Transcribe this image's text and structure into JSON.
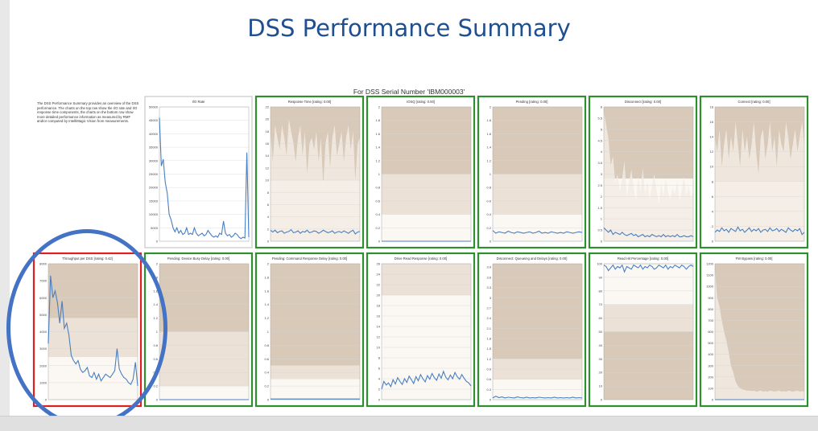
{
  "page": {
    "title": "DSS Performance Summary",
    "subtitle": "For DSS Serial Number 'IBM000003'",
    "description": "The DSS Performance Summary provides an overview of the DSS performance. The charts on the top row show the I/O rate and I/O response time components, the charts on the bottom row show more detailed performance information as measured by RMF and/or computed by IntelliMagic Vision from measurements."
  },
  "colors": {
    "title": "#1f4f8f",
    "line": "#4a7fc1",
    "band_dark": "#d8c9b8",
    "band_mid": "#ebe1d6",
    "band_light": "#fbf8f3",
    "frame_green": "#2f8f2f",
    "frame_red": "#e02020",
    "frame_gray": "#c8c8c8",
    "annotation_circle": "#4472c4"
  },
  "chart_data": [
    {
      "type": "line",
      "title": "I/O Rate",
      "frame": "gray",
      "bands": [],
      "yticks": [
        "0",
        "5000",
        "10000",
        "15000",
        "20000",
        "25000",
        "30000",
        "35000",
        "40000",
        "45000",
        "50000"
      ],
      "ylim": [
        0,
        50000
      ],
      "series": [
        {
          "values": [
            46000,
            28000,
            30500,
            22000,
            18000,
            10000,
            8000,
            5000,
            3500,
            5000,
            3000,
            4000,
            2500,
            3000,
            5000,
            2500,
            3000,
            2500,
            5000,
            3000,
            2000,
            2500,
            3000,
            2000,
            2500,
            4000,
            3000,
            2000,
            1500,
            2000,
            1500,
            3000,
            2500,
            7500,
            3000,
            2000,
            2500,
            1500,
            2000,
            3000,
            2500,
            1500,
            1000,
            1500,
            1200,
            33000,
            1500
          ]
        }
      ]
    },
    {
      "type": "line",
      "title": "Response Time [rating: 0.00]",
      "frame": "green",
      "bands": [
        [
          10,
          22,
          "band_dark"
        ],
        [
          0,
          10,
          "band_light"
        ]
      ],
      "envelope": [
        18,
        13,
        19,
        17,
        15,
        19,
        17,
        14,
        20,
        18,
        16,
        13,
        17,
        19,
        14,
        18,
        11,
        16,
        17,
        15,
        18,
        13,
        17,
        9,
        16,
        18,
        12,
        17,
        19,
        14,
        16,
        18,
        13,
        17,
        19,
        15,
        18,
        10,
        16,
        17
      ],
      "yticks": [
        "0",
        "2",
        "4",
        "6",
        "8",
        "10",
        "12",
        "14",
        "16",
        "18",
        "20",
        "22"
      ],
      "ylim": [
        0,
        22
      ],
      "series": [
        {
          "values": [
            1.8,
            1.5,
            1.8,
            1.4,
            1.6,
            1.7,
            1.3,
            1.5,
            1.6,
            1.9,
            1.4,
            1.5,
            1.7,
            1.3,
            1.6,
            1.5,
            1.8,
            1.4,
            1.5,
            1.7,
            1.6,
            1.3,
            1.5,
            1.8,
            1.6,
            1.4,
            1.5,
            1.7,
            1.3,
            1.5,
            1.6,
            1.4,
            1.7,
            1.5,
            1.3,
            1.6,
            1.8,
            1.2,
            1.5,
            1.6
          ]
        }
      ]
    },
    {
      "type": "line",
      "title": "IOSQ [rating: 0.00]",
      "frame": "green",
      "bands": [
        [
          1,
          2,
          "band_dark"
        ],
        [
          0.4,
          1,
          "band_mid"
        ],
        [
          0,
          0.4,
          "band_light"
        ]
      ],
      "yticks": [
        "0",
        "0.2",
        "0.4",
        "0.6",
        "0.8",
        "1",
        "1.2",
        "1.4",
        "1.6",
        "1.8",
        "2"
      ],
      "ylim": [
        0,
        2
      ],
      "series": [
        {
          "values": [
            0,
            0,
            0,
            0,
            0,
            0,
            0,
            0,
            0,
            0,
            0,
            0,
            0,
            0,
            0,
            0,
            0,
            0,
            0,
            0,
            0,
            0,
            0,
            0,
            0,
            0,
            0,
            0,
            0,
            0
          ]
        }
      ]
    },
    {
      "type": "line",
      "title": "Pending [rating: 0.00]",
      "frame": "green",
      "bands": [
        [
          1,
          2,
          "band_dark"
        ],
        [
          0.4,
          1,
          "band_mid"
        ],
        [
          0,
          0.4,
          "band_light"
        ]
      ],
      "yticks": [
        "0",
        "0.2",
        "0.4",
        "0.6",
        "0.8",
        "1",
        "1.2",
        "1.4",
        "1.6",
        "1.8",
        "2"
      ],
      "ylim": [
        0,
        2
      ],
      "series": [
        {
          "values": [
            0.16,
            0.12,
            0.14,
            0.13,
            0.12,
            0.15,
            0.13,
            0.12,
            0.14,
            0.13,
            0.12,
            0.13,
            0.14,
            0.12,
            0.13,
            0.15,
            0.12,
            0.13,
            0.12,
            0.14,
            0.13,
            0.12,
            0.13,
            0.12,
            0.14,
            0.13,
            0.12,
            0.13,
            0.14,
            0.13
          ]
        }
      ]
    },
    {
      "type": "line",
      "title": "Disconnect [rating: 0.00]",
      "frame": "green",
      "bands": [
        [
          2.8,
          6,
          "band_dark"
        ],
        [
          0,
          2.8,
          "band_light"
        ]
      ],
      "envelope": [
        5.8,
        5.2,
        4.6,
        3.4,
        3.8,
        2.6,
        3.0,
        2.2,
        2.8,
        3.6,
        2.0,
        2.6,
        3.2,
        2.4,
        1.8,
        2.9,
        2.2,
        3.3,
        2.1,
        2.7,
        1.9,
        2.5,
        3.0,
        2.3,
        1.7,
        2.6,
        2.0,
        2.8,
        2.2,
        1.9,
        2.4,
        2.1,
        2.7,
        1.8,
        2.3,
        2.9,
        2.0,
        2.5,
        1.9,
        2.2
      ],
      "yticks": [
        "0",
        "0.5",
        "1",
        "1.5",
        "2",
        "2.5",
        "3",
        "3.5",
        "4",
        "4.5",
        "5",
        "5.5",
        "6"
      ],
      "ylim": [
        0,
        6
      ],
      "series": [
        {
          "values": [
            0.6,
            0.5,
            0.4,
            0.5,
            0.3,
            0.4,
            0.35,
            0.3,
            0.4,
            0.3,
            0.25,
            0.3,
            0.35,
            0.25,
            0.3,
            0.2,
            0.25,
            0.3,
            0.2,
            0.25,
            0.2,
            0.3,
            0.25,
            0.2,
            0.25,
            0.2,
            0.3,
            0.2,
            0.25,
            0.2,
            0.25,
            0.2,
            0.3,
            0.2,
            0.2,
            0.25,
            0.2,
            0.2,
            0.25,
            0.2
          ]
        }
      ]
    },
    {
      "type": "line",
      "title": "Connect [rating: 0.00]",
      "frame": "green",
      "bands": [
        [
          8,
          18,
          "band_dark"
        ],
        [
          0,
          8,
          "band_light"
        ]
      ],
      "envelope": [
        14,
        12,
        15,
        10,
        13,
        15,
        11,
        14,
        12,
        16,
        13,
        10,
        15,
        12,
        14,
        11,
        13,
        16,
        12,
        9,
        14,
        15,
        11,
        13,
        16,
        12,
        14,
        10,
        15,
        13,
        12,
        16,
        14,
        11,
        13,
        15,
        12,
        14,
        16,
        13
      ],
      "yticks": [
        "0",
        "2",
        "4",
        "6",
        "8",
        "10",
        "12",
        "14",
        "16",
        "18"
      ],
      "ylim": [
        0,
        18
      ],
      "series": [
        {
          "values": [
            1.2,
            1.5,
            1.3,
            1.8,
            1.4,
            1.6,
            1.2,
            1.7,
            1.5,
            1.3,
            1.9,
            1.4,
            1.6,
            1.2,
            1.5,
            1.8,
            1.3,
            1.6,
            1.4,
            1.7,
            1.2,
            1.5,
            1.6,
            1.3,
            1.8,
            1.4,
            1.5,
            1.7,
            1.3,
            1.6,
            1.4,
            1.2,
            1.8,
            1.5,
            1.3,
            1.6,
            1.4,
            1.7,
            0.9,
            1.2
          ]
        }
      ]
    },
    {
      "type": "line",
      "title": "Throughput per DSS [rating: 0.42]",
      "frame": "red",
      "bands": [
        [
          4800,
          8000,
          "band_dark"
        ],
        [
          2500,
          4800,
          "band_mid"
        ],
        [
          0,
          2500,
          "band_light"
        ]
      ],
      "yticks": [
        "0",
        "1000",
        "2000",
        "3000",
        "4000",
        "5000",
        "6000",
        "7000",
        "8000"
      ],
      "ylim": [
        0,
        8000
      ],
      "series": [
        {
          "values": [
            3300,
            7300,
            6000,
            6400,
            5700,
            4500,
            5800,
            4200,
            4500,
            3800,
            2600,
            2300,
            2100,
            2300,
            1800,
            1600,
            1700,
            1900,
            1400,
            1300,
            1600,
            1200,
            1500,
            1100,
            1300,
            1500,
            1400,
            1300,
            1500,
            1700,
            3000,
            1800,
            1500,
            1300,
            1200,
            1000,
            900,
            1200,
            2200,
            800
          ]
        }
      ]
    },
    {
      "type": "line",
      "title": "Pending: Device Busy Delay [rating: 0.00]",
      "frame": "green",
      "bands": [
        [
          1,
          2,
          "band_dark"
        ],
        [
          0.2,
          1,
          "band_mid"
        ],
        [
          0,
          0.2,
          "band_light"
        ]
      ],
      "yticks": [
        "0",
        "0.2",
        "0.4",
        "0.6",
        "0.8",
        "1",
        "1.2",
        "1.4",
        "1.6",
        "1.8",
        "2"
      ],
      "ylim": [
        0,
        2
      ],
      "series": [
        {
          "values": [
            0,
            0,
            0,
            0,
            0,
            0,
            0,
            0,
            0,
            0,
            0,
            0,
            0,
            0,
            0,
            0,
            0,
            0,
            0,
            0,
            0,
            0,
            0,
            0,
            0,
            0,
            0,
            0,
            0,
            0
          ]
        }
      ]
    },
    {
      "type": "line",
      "title": "Pending: Command Response Delay [rating: 0.00]",
      "frame": "green",
      "bands": [
        [
          0.5,
          2,
          "band_dark"
        ],
        [
          0.3,
          0.5,
          "band_mid"
        ],
        [
          0,
          0.3,
          "band_light"
        ]
      ],
      "yticks": [
        "0",
        "0.2",
        "0.4",
        "0.6",
        "0.8",
        "1",
        "1.2",
        "1.4",
        "1.6",
        "1.8",
        "2"
      ],
      "ylim": [
        0,
        2
      ],
      "series": [
        {
          "values": [
            0.01,
            0.01,
            0.01,
            0.01,
            0.01,
            0.01,
            0.01,
            0.01,
            0.01,
            0.01,
            0.01,
            0.01,
            0.01,
            0.01,
            0.01,
            0.01,
            0.01,
            0.01,
            0.01,
            0.01,
            0.01,
            0.01,
            0.01,
            0.01,
            0.01,
            0.01,
            0.01,
            0.01,
            0.01,
            0.01
          ]
        }
      ]
    },
    {
      "type": "line",
      "title": "Drive Read Response [rating: 0.00]",
      "frame": "green",
      "bands": [
        [
          20,
          26,
          "band_mid"
        ],
        [
          0,
          20,
          "band_light"
        ]
      ],
      "yticks": [
        "0",
        "2",
        "4",
        "6",
        "8",
        "10",
        "12",
        "14",
        "16",
        "18",
        "20",
        "22",
        "24",
        "26"
      ],
      "ylim": [
        0,
        26
      ],
      "series": [
        {
          "values": [
            2.0,
            3.5,
            2.8,
            3.2,
            2.5,
            3.8,
            3.0,
            4.2,
            3.5,
            2.9,
            4.0,
            3.3,
            4.5,
            3.8,
            3.1,
            4.4,
            3.6,
            4.8,
            4.0,
            3.4,
            4.6,
            3.9,
            5.0,
            4.2,
            3.7,
            4.9,
            4.1,
            5.4,
            4.3,
            3.8,
            4.7,
            4.0,
            5.2,
            4.4,
            3.9,
            4.8,
            4.1,
            3.5,
            3.2,
            2.6
          ]
        }
      ]
    },
    {
      "type": "line",
      "title": "Disconnect: Queueing and Delays [rating: 0.00]",
      "frame": "green",
      "bands": [
        [
          1.2,
          4,
          "band_dark"
        ],
        [
          0.6,
          1.2,
          "band_mid"
        ],
        [
          0,
          0.6,
          "band_light"
        ]
      ],
      "yticks": [
        "0",
        "0.3",
        "0.6",
        "0.9",
        "1.2",
        "1.5",
        "1.8",
        "2.1",
        "2.4",
        "2.7",
        "3",
        "3.3",
        "3.6",
        "3.9"
      ],
      "ylim": [
        0,
        4
      ],
      "series": [
        {
          "values": [
            0.05,
            0.1,
            0.06,
            0.08,
            0.05,
            0.07,
            0.06,
            0.05,
            0.08,
            0.06,
            0.05,
            0.07,
            0.05,
            0.06,
            0.05,
            0.07,
            0.06,
            0.05,
            0.06,
            0.05,
            0.07,
            0.05,
            0.06,
            0.05,
            0.06,
            0.05,
            0.07,
            0.05,
            0.06,
            0.05
          ]
        }
      ]
    },
    {
      "type": "line",
      "title": "Read Hit Percentage [rating: 0.00]",
      "frame": "green",
      "bands": [
        [
          70,
          100,
          "band_light"
        ],
        [
          50,
          70,
          "band_mid"
        ],
        [
          0,
          50,
          "band_dark"
        ]
      ],
      "yticks": [
        "0",
        "10",
        "20",
        "30",
        "40",
        "50",
        "60",
        "70",
        "80",
        "90",
        "100"
      ],
      "ylim": [
        0,
        100
      ],
      "series": [
        {
          "values": [
            99,
            98,
            95,
            97,
            99,
            96,
            98,
            97,
            99,
            94,
            98,
            97,
            96,
            99,
            98,
            97,
            99,
            96,
            98,
            97,
            99,
            98,
            96,
            97,
            99,
            98,
            97,
            99,
            96,
            98,
            97,
            99,
            98,
            97,
            99,
            98,
            96,
            98,
            99,
            98
          ]
        }
      ]
    },
    {
      "type": "line",
      "title": "FW Bypass [rating: 0.00]",
      "frame": "green",
      "bands": [
        [
          0,
          1200,
          "band_dark"
        ]
      ],
      "envelope": [
        1150,
        900,
        820,
        700,
        600,
        520,
        420,
        300,
        240,
        160,
        120,
        100,
        90,
        85,
        80,
        80,
        75,
        80,
        70,
        75,
        80,
        70,
        75,
        70,
        80,
        75,
        70,
        75,
        80,
        70,
        75,
        70,
        80,
        75,
        70,
        75,
        80,
        70,
        75,
        70
      ],
      "yticks": [
        "0",
        "100",
        "200",
        "300",
        "400",
        "500",
        "600",
        "700",
        "800",
        "900",
        "1000",
        "1100",
        "1200"
      ],
      "ylim": [
        0,
        1200
      ],
      "series": [
        {
          "values": [
            0,
            0,
            0,
            0,
            0,
            0,
            0,
            0,
            0,
            0,
            0,
            0,
            0,
            0,
            0,
            0,
            0,
            0,
            0,
            0,
            0,
            0,
            0,
            0,
            0,
            0,
            0,
            0,
            0,
            0
          ]
        }
      ]
    }
  ]
}
